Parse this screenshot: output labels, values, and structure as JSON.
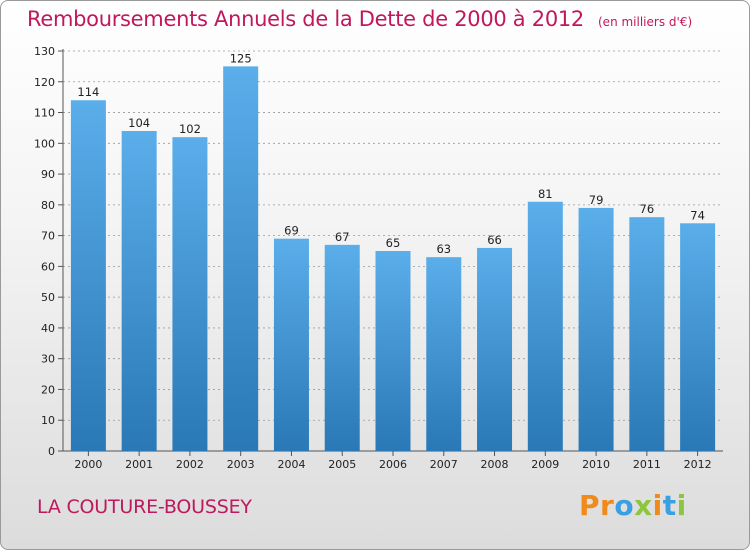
{
  "header": {
    "title": "Remboursements Annuels de la Dette de 2000 à 2012",
    "unit": "(en milliers d'€)"
  },
  "footer": {
    "place": "LA COUTURE-BOUSSEY",
    "logo": "Proxiti"
  },
  "colors": {
    "title": "#c0185c",
    "bar_top": "#5aaeea",
    "bar_bottom": "#2a78b6",
    "grid": "#999999",
    "logo_letters": [
      "#f08a1a",
      "#f08a1a",
      "#3aa0e0",
      "#8cc63f",
      "#f08a1a",
      "#3aa0e0",
      "#8cc63f"
    ]
  },
  "chart_data": {
    "type": "bar",
    "title": "Remboursements Annuels de la Dette de 2000 à 2012",
    "subtitle": "(en milliers d'€)",
    "xlabel": "",
    "ylabel": "",
    "categories": [
      "2000",
      "2001",
      "2002",
      "2003",
      "2004",
      "2005",
      "2006",
      "2007",
      "2008",
      "2009",
      "2010",
      "2011",
      "2012"
    ],
    "values": [
      114,
      104,
      102,
      125,
      69,
      67,
      65,
      63,
      66,
      81,
      79,
      76,
      74
    ],
    "ylim": [
      0,
      130
    ],
    "yticks": [
      0,
      10,
      20,
      30,
      40,
      50,
      60,
      70,
      80,
      90,
      100,
      110,
      120,
      130
    ],
    "grid": "horizontal dashed",
    "legend": "none"
  }
}
